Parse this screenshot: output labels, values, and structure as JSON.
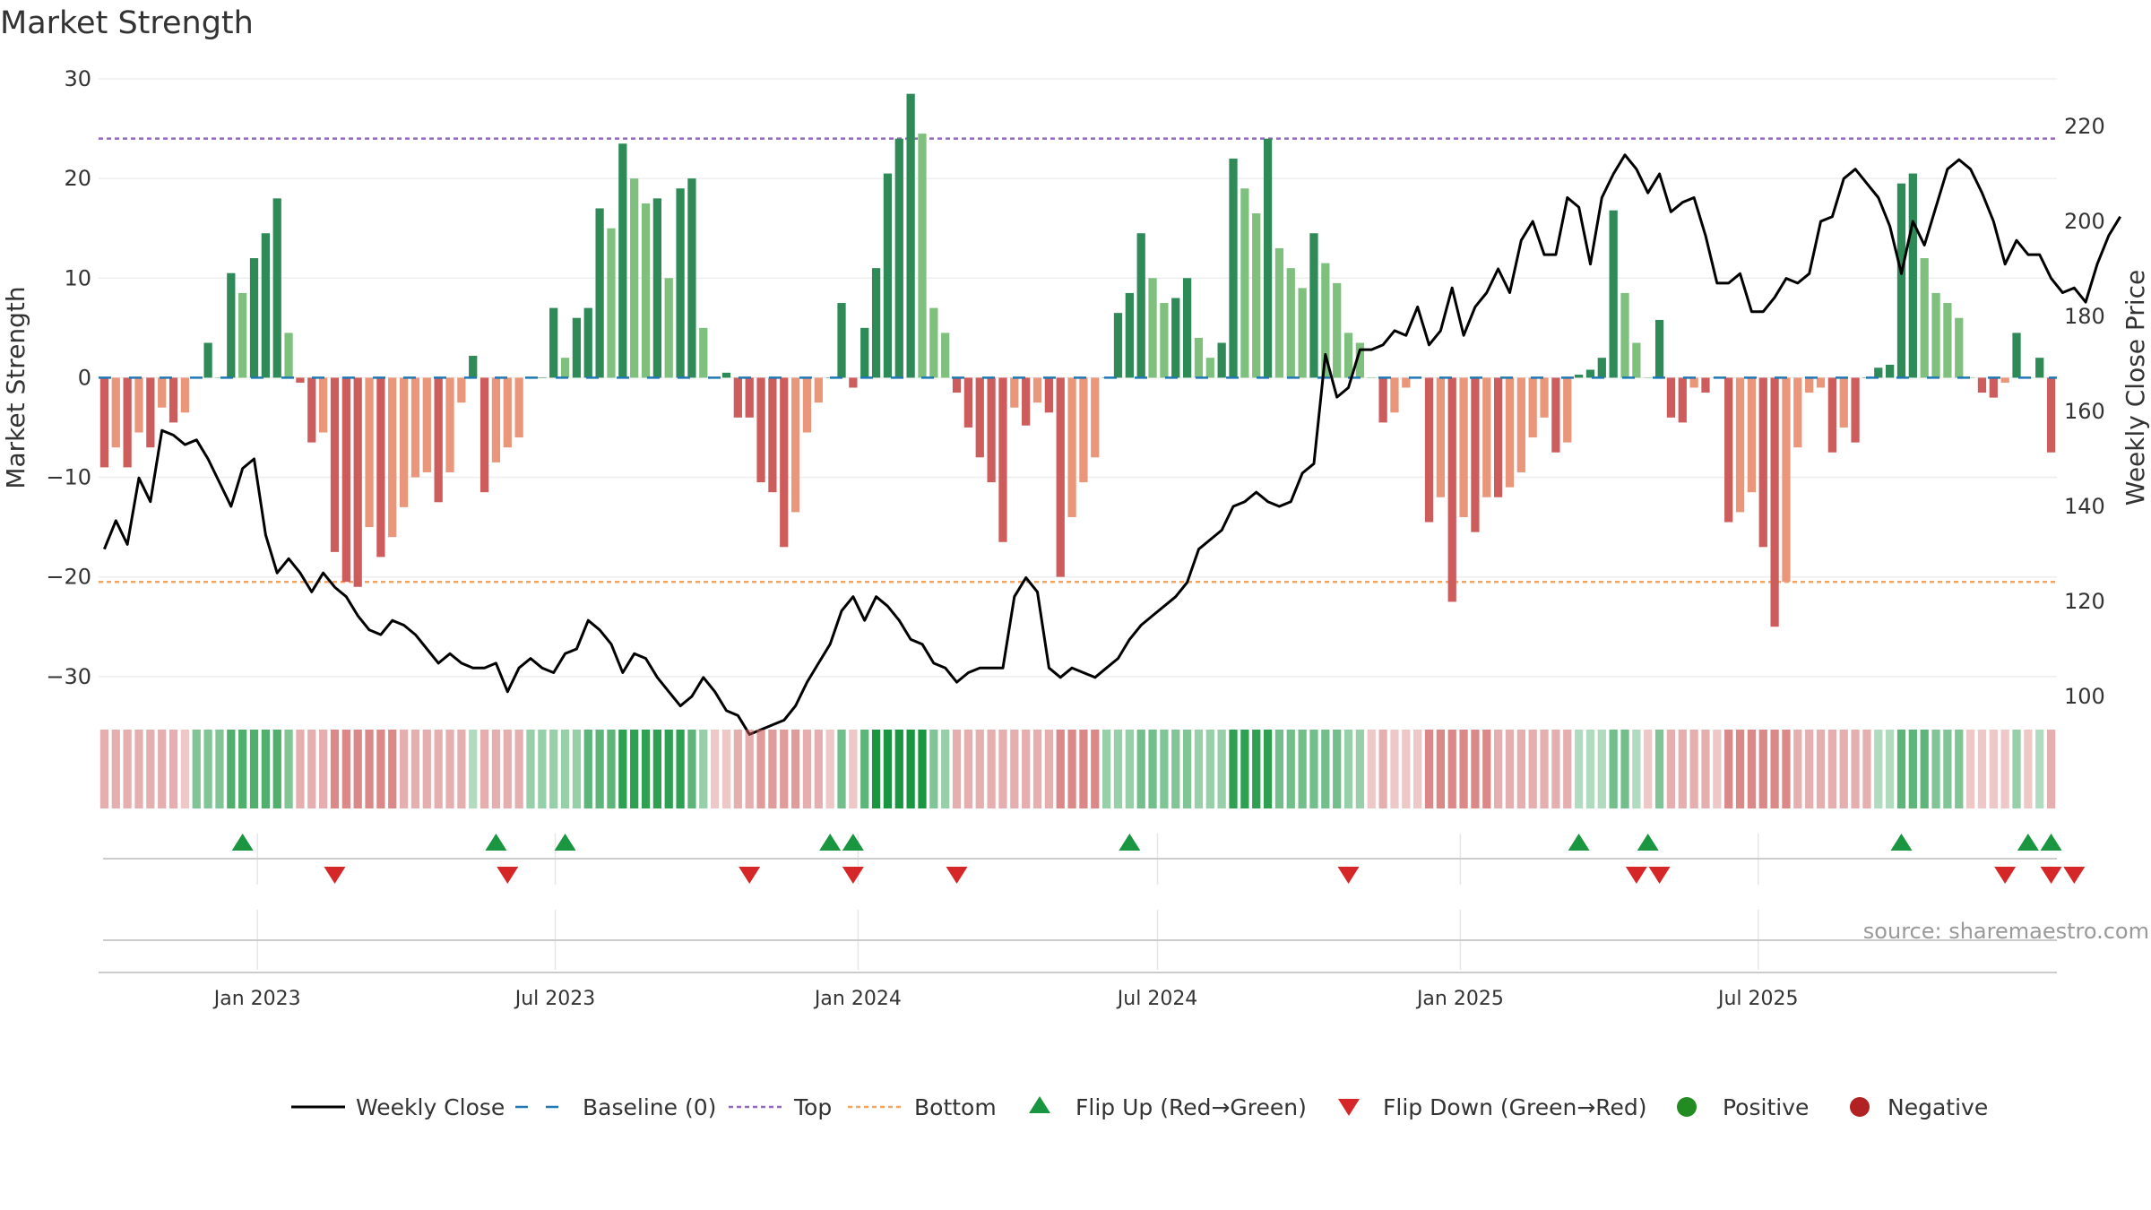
{
  "title": "Market Strength",
  "source": "source: sharemaestro.com",
  "colors": {
    "strong_green": "#2e8b57",
    "light_green": "#7fc07f",
    "strong_red": "#cd5c5c",
    "light_red": "#e9967a",
    "close_line": "#000000",
    "baseline": "#1f77b4",
    "top_line": "#9467bd",
    "bottom_line": "#f4a460",
    "flip_up": "#1a9641",
    "flip_down": "#d62728",
    "positive": "#228b22",
    "negative": "#b22222"
  },
  "chart_data": {
    "type": "bar",
    "title": "Market Strength",
    "x_start": "2022-09-30",
    "x_step_days": 7,
    "x_ticks": [
      "Jan 2023",
      "Jul 2023",
      "Jan 2024",
      "Jul 2024",
      "Jan 2025",
      "Jul 2025"
    ],
    "x_tick_dates": [
      "2023-01-01",
      "2023-07-01",
      "2024-01-01",
      "2024-07-01",
      "2025-01-01",
      "2025-07-01"
    ],
    "ylabel_left": "Market Strength",
    "ylim_left": [
      -32,
      30
    ],
    "yticks_left": [
      30,
      20,
      10,
      0,
      -10,
      -20,
      -30
    ],
    "ytick_labels_left": [
      "30",
      "20",
      "10",
      "0",
      "−10",
      "−20",
      "−30"
    ],
    "ylabel_right": "Weekly Close Price",
    "ylim_right": [
      100,
      230
    ],
    "yticks_right": [
      220,
      200,
      180,
      160,
      140,
      120,
      100
    ],
    "top_threshold": 24,
    "bottom_threshold": -20.5,
    "grid": true,
    "legend_position": "bottom-center",
    "series": [
      {
        "name": "Market Strength",
        "values": [
          -9,
          -7,
          -9,
          -5.5,
          -7,
          -3,
          -4.5,
          -3.5,
          0,
          3.5,
          0,
          10.5,
          8.5,
          12,
          14.5,
          18,
          4.5,
          -0.5,
          -6.5,
          -5.5,
          -17.5,
          -20.5,
          -21,
          -15,
          -18,
          -16,
          -13,
          -10,
          -9.5,
          -12.5,
          -9.5,
          -2.5,
          2.2,
          -11.5,
          -8.5,
          -7,
          -6,
          0,
          0,
          7,
          2,
          6,
          7,
          17,
          15,
          23.5,
          20,
          17.5,
          18,
          10,
          19,
          20,
          5,
          0,
          0.5,
          -4,
          -4,
          -10.5,
          -11.5,
          -17,
          -13.5,
          -5.5,
          -2.5,
          0,
          7.5,
          -1,
          5,
          11,
          20.5,
          24,
          28.5,
          24.5,
          7,
          4.5,
          -1.5,
          -5,
          -8,
          -10.5,
          -16.5,
          -3,
          -4.8,
          -2.5,
          -3.5,
          -20,
          -14,
          -10.5,
          -8,
          0,
          6.5,
          8.5,
          14.5,
          10,
          7.5,
          8,
          10,
          4,
          2,
          3.5,
          22,
          19,
          16.5,
          24,
          13,
          11,
          9,
          14.5,
          11.5,
          9.5,
          4.5,
          3.5,
          0,
          -4.5,
          -3.5,
          -1,
          0,
          -14.5,
          -12,
          -22.5,
          -14,
          -15.5,
          -12,
          -12,
          -11,
          -9.5,
          -6,
          -4,
          -7.5,
          -6.5,
          0.3,
          0.8,
          2,
          16.8,
          8.5,
          3.5,
          0,
          5.8,
          -4,
          -4.5,
          -1,
          -1.5,
          0,
          -14.5,
          -13.5,
          -11.5,
          -17,
          -25,
          -20.5,
          -7,
          -1.5,
          -1,
          -7.5,
          -5,
          -6.5,
          0,
          1,
          1.3,
          19.5,
          20.5,
          12,
          8.5,
          7.5,
          6,
          0,
          -1.5,
          -2,
          -0.5,
          4.5,
          0,
          2,
          -7.5
        ]
      },
      {
        "name": "Weekly Close",
        "values": [
          131,
          137,
          132,
          146,
          141,
          156,
          155,
          153,
          154,
          150,
          145,
          140,
          148,
          150,
          134,
          126,
          129,
          126,
          122,
          126,
          123,
          121,
          117,
          114,
          113,
          116,
          115,
          113,
          110,
          107,
          109,
          107,
          106,
          106,
          107,
          101,
          106,
          108,
          106,
          105,
          109,
          110,
          116,
          114,
          111,
          105,
          109,
          108,
          104,
          101,
          98,
          100,
          104,
          101,
          97,
          96,
          92,
          93,
          94,
          95,
          98,
          103,
          107,
          111,
          118,
          121,
          116,
          121,
          119,
          116,
          112,
          111,
          107,
          106,
          103,
          105,
          106,
          106,
          106,
          121,
          125,
          122,
          106,
          104,
          106,
          105,
          104,
          106,
          108,
          112,
          115,
          117,
          119,
          121,
          124,
          131,
          133,
          135,
          140,
          141,
          143,
          141,
          140,
          141,
          147,
          149,
          172,
          163,
          165,
          173,
          173,
          174,
          177,
          176,
          182,
          174,
          177,
          186,
          176,
          182,
          185,
          190,
          185,
          196,
          200,
          193,
          193,
          205,
          203,
          191,
          205,
          210,
          214,
          211,
          206,
          210,
          202,
          204,
          205,
          197,
          187,
          187,
          189,
          181,
          181,
          184,
          188,
          187,
          189,
          200,
          201,
          209,
          211,
          208,
          205,
          199,
          189,
          200,
          195,
          203,
          211,
          213,
          211,
          206,
          200,
          191,
          196,
          193,
          193,
          188,
          185,
          186,
          183,
          191,
          197,
          201
        ]
      }
    ],
    "strip_values": [
      -8,
      -8,
      -8,
      -8,
      -8,
      -8,
      -8,
      -3,
      10,
      10,
      10,
      17,
      17,
      17,
      17,
      17,
      10,
      -8,
      -8,
      -8,
      -16,
      -16,
      -16,
      -16,
      -16,
      -16,
      -8,
      -8,
      -8,
      -8,
      -8,
      -8,
      3,
      -8,
      -8,
      -8,
      -8,
      7,
      7,
      7,
      7,
      7,
      15,
      15,
      15,
      22,
      22,
      22,
      22,
      22,
      22,
      15,
      7,
      -3,
      -3,
      -8,
      -8,
      -12,
      -12,
      -12,
      -12,
      -8,
      -8,
      -3,
      12,
      -3,
      15,
      25,
      25,
      25,
      25,
      25,
      10,
      7,
      -8,
      -8,
      -8,
      -8,
      -8,
      -8,
      -8,
      -8,
      -8,
      -16,
      -16,
      -16,
      -16,
      7,
      7,
      7,
      12,
      12,
      10,
      10,
      10,
      7,
      7,
      7,
      22,
      22,
      22,
      22,
      12,
      12,
      12,
      12,
      12,
      12,
      7,
      7,
      -3,
      -8,
      -3,
      -3,
      -3,
      -16,
      -16,
      -16,
      -16,
      -16,
      -16,
      -8,
      -8,
      -8,
      -8,
      -8,
      -8,
      -8,
      3,
      3,
      3,
      12,
      12,
      3,
      -3,
      10,
      -8,
      -8,
      -8,
      -8,
      -3,
      -16,
      -16,
      -16,
      -16,
      -16,
      -16,
      -8,
      -8,
      -8,
      -8,
      -8,
      -8,
      -8,
      3,
      3,
      15,
      15,
      15,
      10,
      10,
      10,
      -3,
      -3,
      -3,
      -3,
      7,
      -3,
      3,
      -8
    ],
    "flip_up_indices": [
      12,
      34,
      40,
      63,
      65,
      89,
      128,
      134,
      156,
      167,
      169
    ],
    "flip_down_indices": [
      20,
      35,
      56,
      65,
      74,
      108,
      133,
      135,
      165,
      169,
      171
    ],
    "legend": [
      "Weekly Close",
      "Baseline (0)",
      "Top",
      "Bottom",
      "Flip Up (Red→Green)",
      "Flip Down (Green→Red)",
      "Positive",
      "Negative"
    ]
  }
}
